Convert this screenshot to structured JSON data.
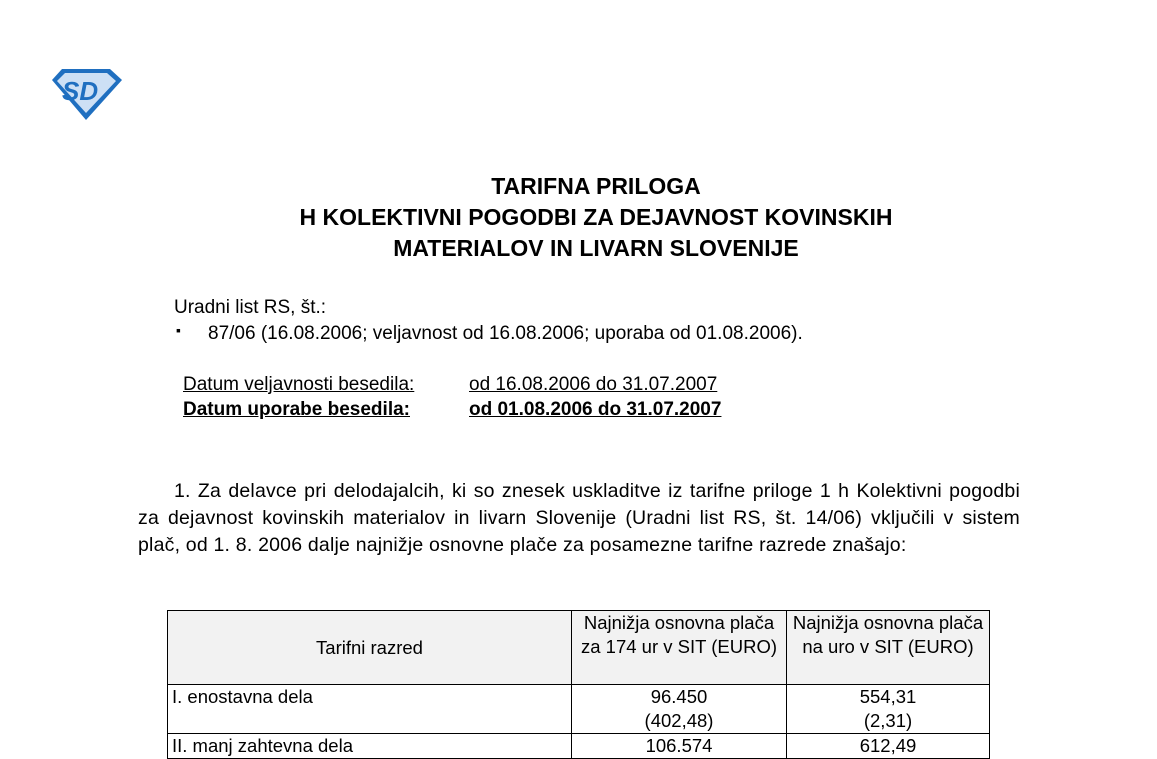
{
  "logo": {
    "text": "SD",
    "color": "#1f6fc0",
    "light": "#cde0f5"
  },
  "title": [
    "TARIFNA PRILOGA",
    "H KOLEKTIVNI POGODBI ZA DEJAVNOST KOVINSKIH",
    "MATERIALOV IN LIVARN SLOVENIJE"
  ],
  "gazette": {
    "label": "Uradni list RS, št.:",
    "bullet": "▪",
    "item": "87/06 (16.08.2006; veljavnost od 16.08.2006; uporaba od 01.08.2006)."
  },
  "validity": {
    "label": "Datum veljavnosti besedila:",
    "value": "od 16.08.2006 do 31.07.2007"
  },
  "application": {
    "label": "Datum uporabe besedila:",
    "value": "od 01.08.2006 do 31.07.2007"
  },
  "paragraph": "1. Za delavce pri delodajalcih, ki so znesek uskladitve iz tarifne priloge 1 h Kolektivni pogodbi za dejavnost kovinskih materialov in livarn Slovenije (Uradni list RS, št. 14/06) vključili v sistem plač, od 1. 8. 2006 dalje najnižje osnovne plače za posamezne tarifne razrede znašajo:",
  "table": {
    "headers": [
      "Tarifni razred",
      "Najnižja  osnovna plača za 174 ur v SIT (EURO)",
      "Najnižja osnovna plača na uro v SIT (EURO)"
    ],
    "rows": [
      {
        "class": "I. enostavna dela",
        "monthly": "96.450",
        "monthly_eur": "(402,48)",
        "hourly": "554,31",
        "hourly_eur": "(2,31)"
      },
      {
        "class": "II. manj zahtevna dela",
        "monthly": "106.574",
        "monthly_eur": "",
        "hourly": "612,49",
        "hourly_eur": ""
      }
    ]
  }
}
